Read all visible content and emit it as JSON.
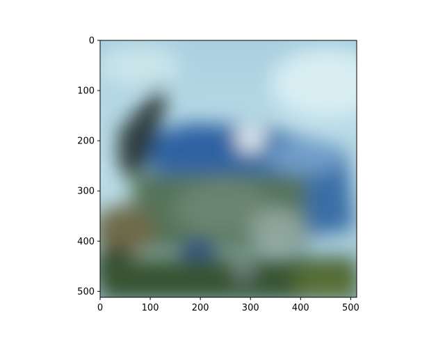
{
  "figure": {
    "background": "#ffffff",
    "image_description_colors": {
      "sky": "#b9dde8",
      "vehicle_blue": "#3a6fa8",
      "foliage": "#4d6a4a",
      "ground": "#3c5a2e"
    },
    "x_axis": {
      "range": [
        0,
        512
      ],
      "ticks": [
        0,
        100,
        200,
        300,
        400,
        500
      ]
    },
    "y_axis": {
      "range": [
        0,
        512
      ],
      "inverted": true,
      "ticks": [
        0,
        100,
        200,
        300,
        400,
        500
      ]
    }
  }
}
